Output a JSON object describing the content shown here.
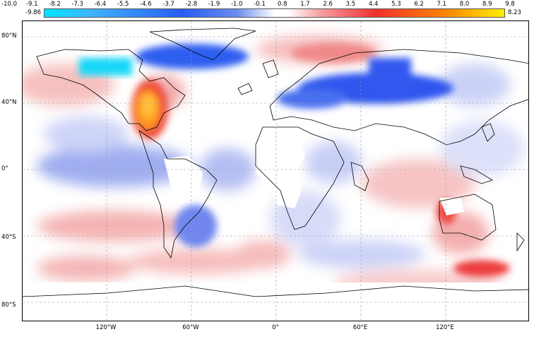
{
  "colorbar": {
    "ticks": [
      "-10.0",
      "-9.1",
      "-8.2",
      "-7.3",
      "-6.4",
      "-5.5",
      "-4.6",
      "-3.7",
      "-2.8",
      "-1.9",
      "-1.0",
      "-0.1",
      "0.8",
      "1.7",
      "2.6",
      "3.5",
      "4.4",
      "5.3",
      "6.2",
      "7.1",
      "8.0",
      "8.9",
      "9.8"
    ],
    "min_label": "-9.86",
    "max_label": "8.23",
    "colors": [
      "#00e5ff",
      "#3fb6ff",
      "#2a5cf2",
      "#6e8df0",
      "#ffffff",
      "#f6a0a0",
      "#ee3030",
      "#ff8a00",
      "#fff000"
    ]
  },
  "map": {
    "lat_labels": [
      "80°N",
      "40°N",
      "0°",
      "40°S",
      "80°S"
    ],
    "lon_labels": [
      "120°W",
      "60°W",
      "0°",
      "60°E",
      "120°E"
    ],
    "grid": "dashed"
  }
}
